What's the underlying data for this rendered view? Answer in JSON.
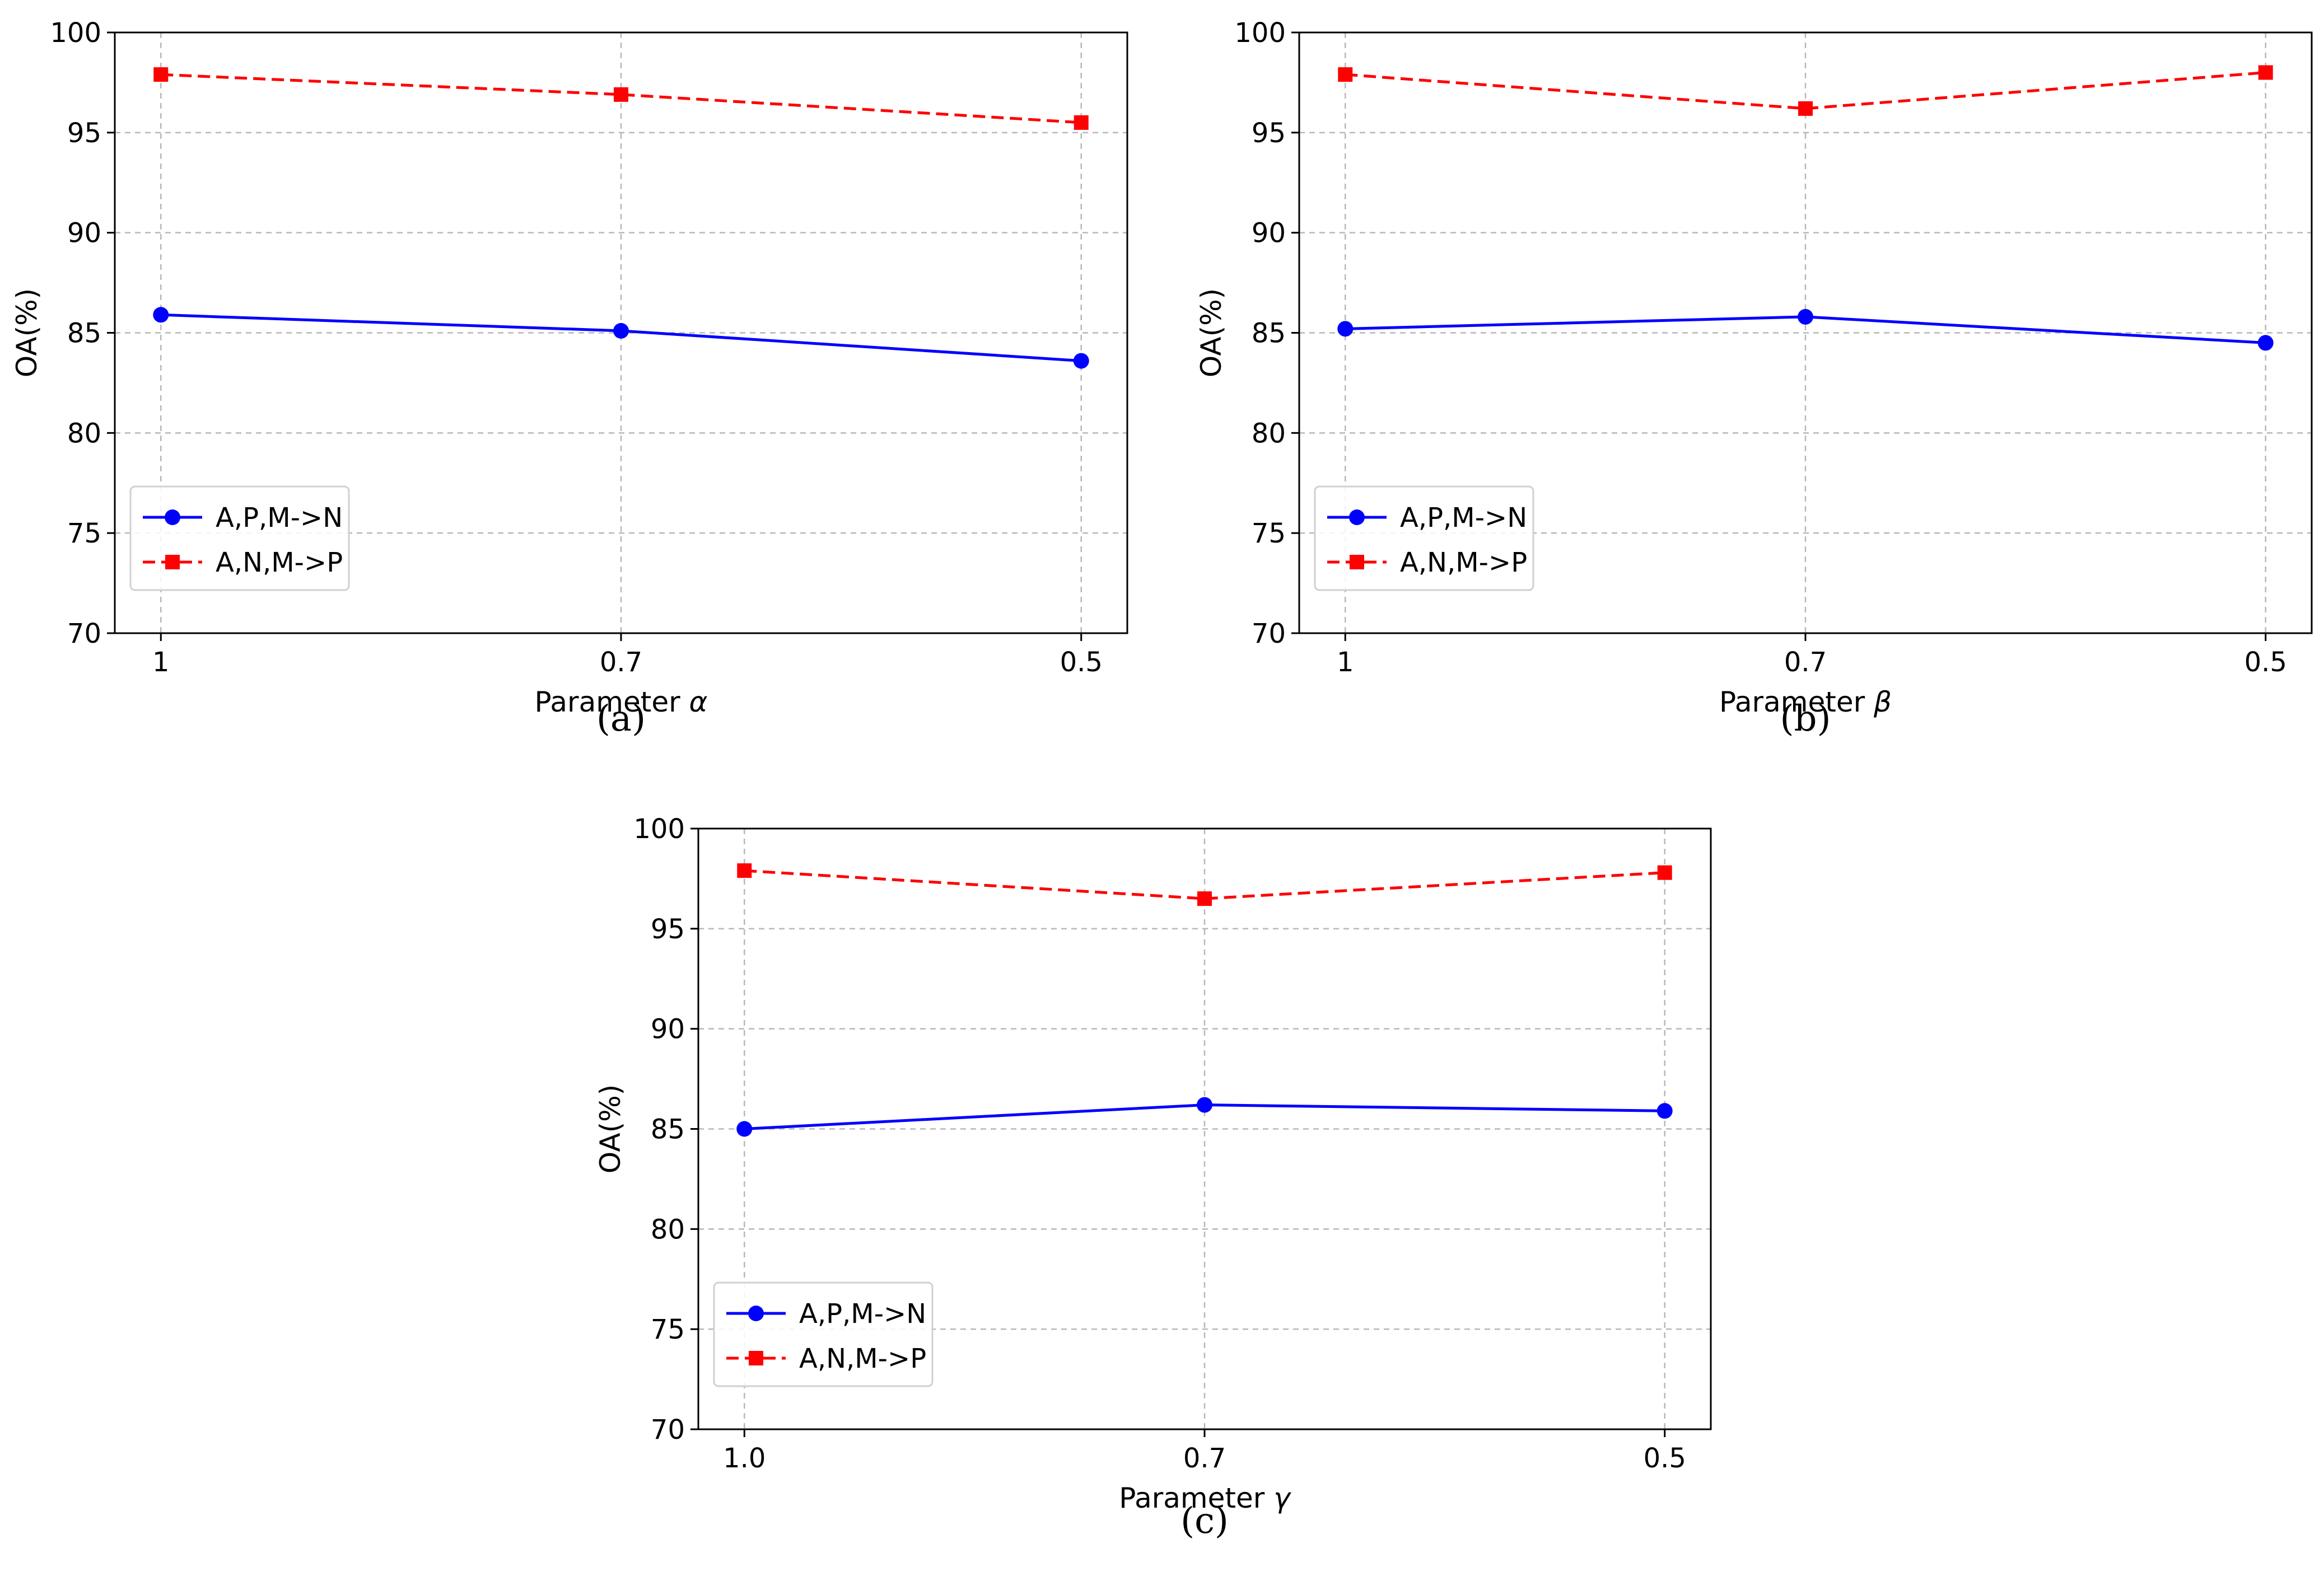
{
  "chart_data": [
    {
      "type": "line",
      "caption": "(a)",
      "param_prefix": "Parameter ",
      "param_symbol": "α",
      "ylabel": "OA(%)",
      "categories": [
        "1",
        "0.7",
        "0.5"
      ],
      "ylim": [
        70,
        100
      ],
      "yticks": [
        "70",
        "75",
        "80",
        "85",
        "90",
        "95",
        "100"
      ],
      "grid": true,
      "legend_position": "lower-left",
      "series": [
        {
          "name": "A,P,M->N",
          "color": "#0000ff",
          "marker": "circle",
          "dashed": false,
          "values": [
            85.9,
            85.1,
            83.6
          ]
        },
        {
          "name": "A,N,M->P",
          "color": "#ff0000",
          "marker": "square",
          "dashed": true,
          "values": [
            97.9,
            96.9,
            95.5
          ]
        }
      ]
    },
    {
      "type": "line",
      "caption": "(b)",
      "param_prefix": "Parameter ",
      "param_symbol": "β",
      "ylabel": "OA(%)",
      "categories": [
        "1",
        "0.7",
        "0.5"
      ],
      "ylim": [
        70,
        100
      ],
      "yticks": [
        "70",
        "75",
        "80",
        "85",
        "90",
        "95",
        "100"
      ],
      "grid": true,
      "legend_position": "lower-left",
      "series": [
        {
          "name": "A,P,M->N",
          "color": "#0000ff",
          "marker": "circle",
          "dashed": false,
          "values": [
            85.2,
            85.8,
            84.5
          ]
        },
        {
          "name": "A,N,M->P",
          "color": "#ff0000",
          "marker": "square",
          "dashed": true,
          "values": [
            97.9,
            96.2,
            98.0
          ]
        }
      ]
    },
    {
      "type": "line",
      "caption": "(c)",
      "param_prefix": "Parameter ",
      "param_symbol": "γ",
      "ylabel": "OA(%)",
      "categories": [
        "1.0",
        "0.7",
        "0.5"
      ],
      "ylim": [
        70,
        100
      ],
      "yticks": [
        "70",
        "75",
        "80",
        "85",
        "90",
        "95",
        "100"
      ],
      "grid": true,
      "legend_position": "lower-left",
      "series": [
        {
          "name": "A,P,M->N",
          "color": "#0000ff",
          "marker": "circle",
          "dashed": false,
          "values": [
            85.0,
            86.2,
            85.9
          ]
        },
        {
          "name": "A,N,M->P",
          "color": "#ff0000",
          "marker": "square",
          "dashed": true,
          "values": [
            97.9,
            96.5,
            97.8
          ]
        }
      ]
    }
  ]
}
